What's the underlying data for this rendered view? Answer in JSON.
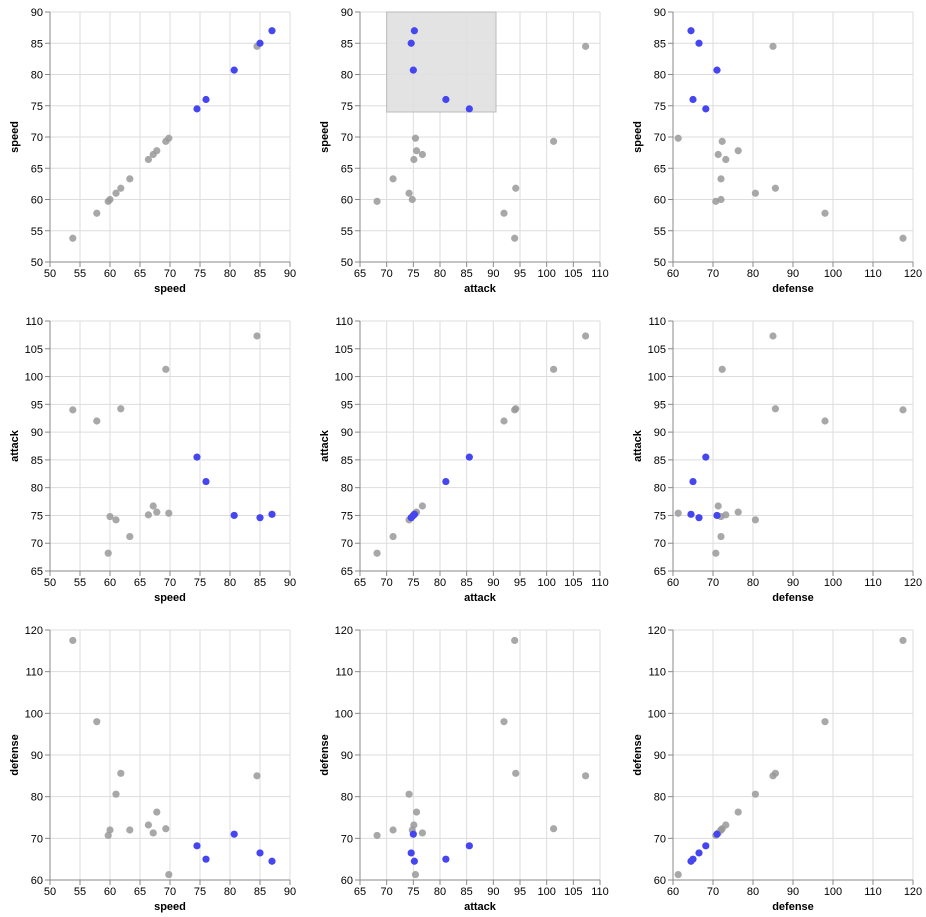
{
  "chart_data": {
    "type": "scatter_matrix",
    "fields": [
      {
        "name": "speed",
        "lim": [
          50,
          90
        ],
        "ticks": [
          50,
          55,
          60,
          65,
          70,
          75,
          80,
          85,
          90
        ]
      },
      {
        "name": "attack",
        "lim": [
          65,
          110
        ],
        "ticks": [
          65,
          70,
          75,
          80,
          85,
          90,
          95,
          100,
          105,
          110
        ]
      },
      {
        "name": "defense",
        "lim": [
          60,
          120
        ],
        "ticks": [
          60,
          70,
          80,
          90,
          100,
          110,
          120
        ]
      }
    ],
    "points": {
      "speed": [
        53.8,
        57.8,
        59.7,
        60.0,
        61.0,
        61.8,
        63.3,
        66.4,
        67.2,
        67.8,
        69.3,
        69.8,
        84.5,
        87.0,
        85.0,
        80.7,
        76.0,
        74.5
      ],
      "attack": [
        94.0,
        92.0,
        68.2,
        74.8,
        74.2,
        94.2,
        71.2,
        75.1,
        76.7,
        75.6,
        101.3,
        75.4,
        107.3,
        75.2,
        74.6,
        75.0,
        81.1,
        85.5
      ],
      "defense": [
        117.5,
        98.0,
        70.7,
        72.0,
        80.6,
        85.6,
        72.0,
        73.2,
        71.3,
        76.3,
        72.3,
        61.3,
        85.0,
        64.5,
        66.5,
        71.0,
        65.0,
        68.2
      ]
    },
    "brush": {
      "row": "speed",
      "column": "attack",
      "x": [
        70,
        90.5
      ],
      "y": [
        74,
        90
      ]
    },
    "colors": {
      "selected": "#4646f0",
      "unselected": "#999999",
      "brush": "#e0e0e0",
      "grid": "#dddddd"
    },
    "grid": true
  }
}
